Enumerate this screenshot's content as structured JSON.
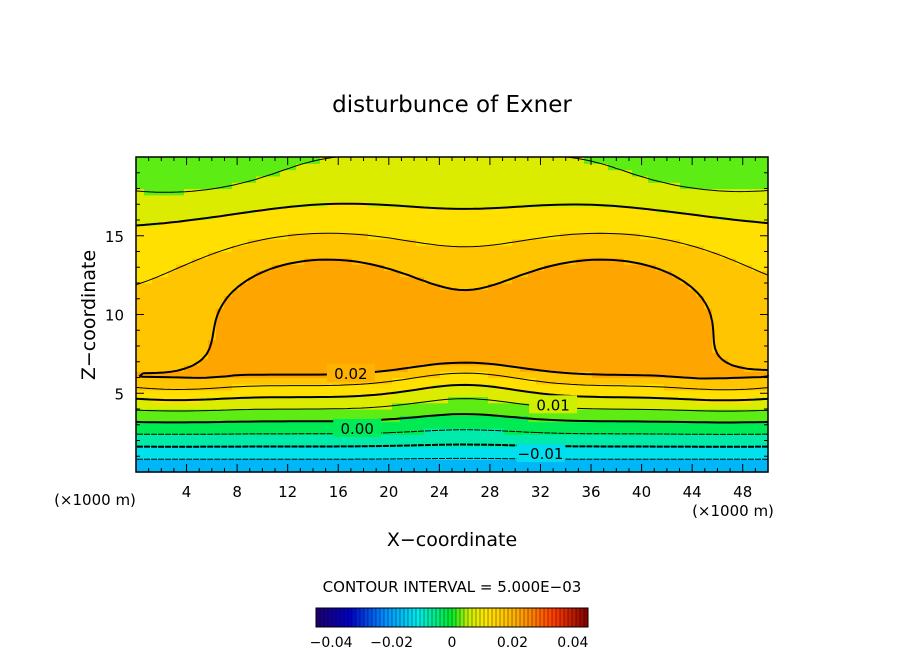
{
  "chart_data": {
    "type": "contour",
    "title": "disturbunce of Exner",
    "xlabel": "X−coordinate",
    "ylabel": "Z−coordinate",
    "x_unit_left": "(×1000 m)",
    "x_unit_right": "(×1000 m)",
    "xlim": [
      0,
      50
    ],
    "ylim": [
      0,
      20
    ],
    "x_ticks": [
      4,
      8,
      12,
      16,
      20,
      24,
      28,
      32,
      36,
      40,
      44,
      48
    ],
    "x_tick_labels": [
      "4",
      "8",
      "12",
      "16",
      "20",
      "24",
      "28",
      "32",
      "36",
      "40",
      "44",
      "48"
    ],
    "y_ticks": [
      5,
      10,
      15
    ],
    "y_tick_labels": [
      "5",
      "10",
      "15"
    ],
    "contour_labels": [
      {
        "text": "0.02",
        "x": 17,
        "y": 6.3
      },
      {
        "text": "0.01",
        "x": 33,
        "y": 4.3
      },
      {
        "text": "0.00",
        "x": 17.5,
        "y": 2.8
      },
      {
        "text": "−0.01",
        "x": 32,
        "y": 1.2
      }
    ],
    "value_range": [
      -0.045,
      0.045
    ],
    "contour_interval_text": "CONTOUR INTERVAL = 5.000E−03",
    "colorbar": {
      "tick_values": [
        -0.04,
        -0.02,
        0,
        0.02,
        0.04
      ],
      "tick_labels": [
        "−0.04",
        "−0.02",
        "0",
        "0.02",
        "0.04"
      ]
    },
    "field_description": "maximum about 0.029 near (15,11) and (37,11); 0.02 at z~6-9; 0 near z~3; about -0.02 at the bottom"
  }
}
